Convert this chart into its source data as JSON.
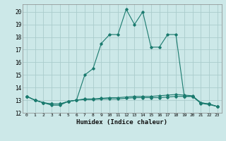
{
  "title": "",
  "xlabel": "Humidex (Indice chaleur)",
  "ylabel": "",
  "bg_color": "#cce8e8",
  "grid_color": "#aacccc",
  "line_color": "#1a7a6e",
  "xlim": [
    -0.5,
    23.5
  ],
  "ylim": [
    12.0,
    20.6
  ],
  "yticks": [
    12,
    13,
    14,
    15,
    16,
    17,
    18,
    19,
    20
  ],
  "xticks": [
    0,
    1,
    2,
    3,
    4,
    5,
    6,
    7,
    8,
    9,
    10,
    11,
    12,
    13,
    14,
    15,
    16,
    17,
    18,
    19,
    20,
    21,
    22,
    23
  ],
  "series": [
    [
      13.3,
      13.0,
      12.8,
      12.6,
      12.6,
      12.9,
      13.0,
      15.0,
      15.5,
      17.5,
      18.2,
      18.2,
      20.2,
      19.0,
      20.0,
      17.2,
      17.2,
      18.2,
      18.2,
      13.3,
      13.3,
      12.8,
      12.7,
      12.5
    ],
    [
      13.3,
      13.0,
      12.8,
      12.7,
      12.7,
      12.9,
      13.0,
      13.1,
      13.1,
      13.15,
      13.2,
      13.2,
      13.25,
      13.3,
      13.3,
      13.3,
      13.35,
      13.4,
      13.45,
      13.4,
      13.35,
      12.8,
      12.7,
      12.5
    ],
    [
      13.3,
      13.0,
      12.8,
      12.7,
      12.7,
      12.9,
      13.0,
      13.05,
      13.05,
      13.1,
      13.1,
      13.1,
      13.15,
      13.2,
      13.2,
      13.2,
      13.2,
      13.25,
      13.3,
      13.3,
      13.3,
      12.75,
      12.65,
      12.5
    ]
  ]
}
